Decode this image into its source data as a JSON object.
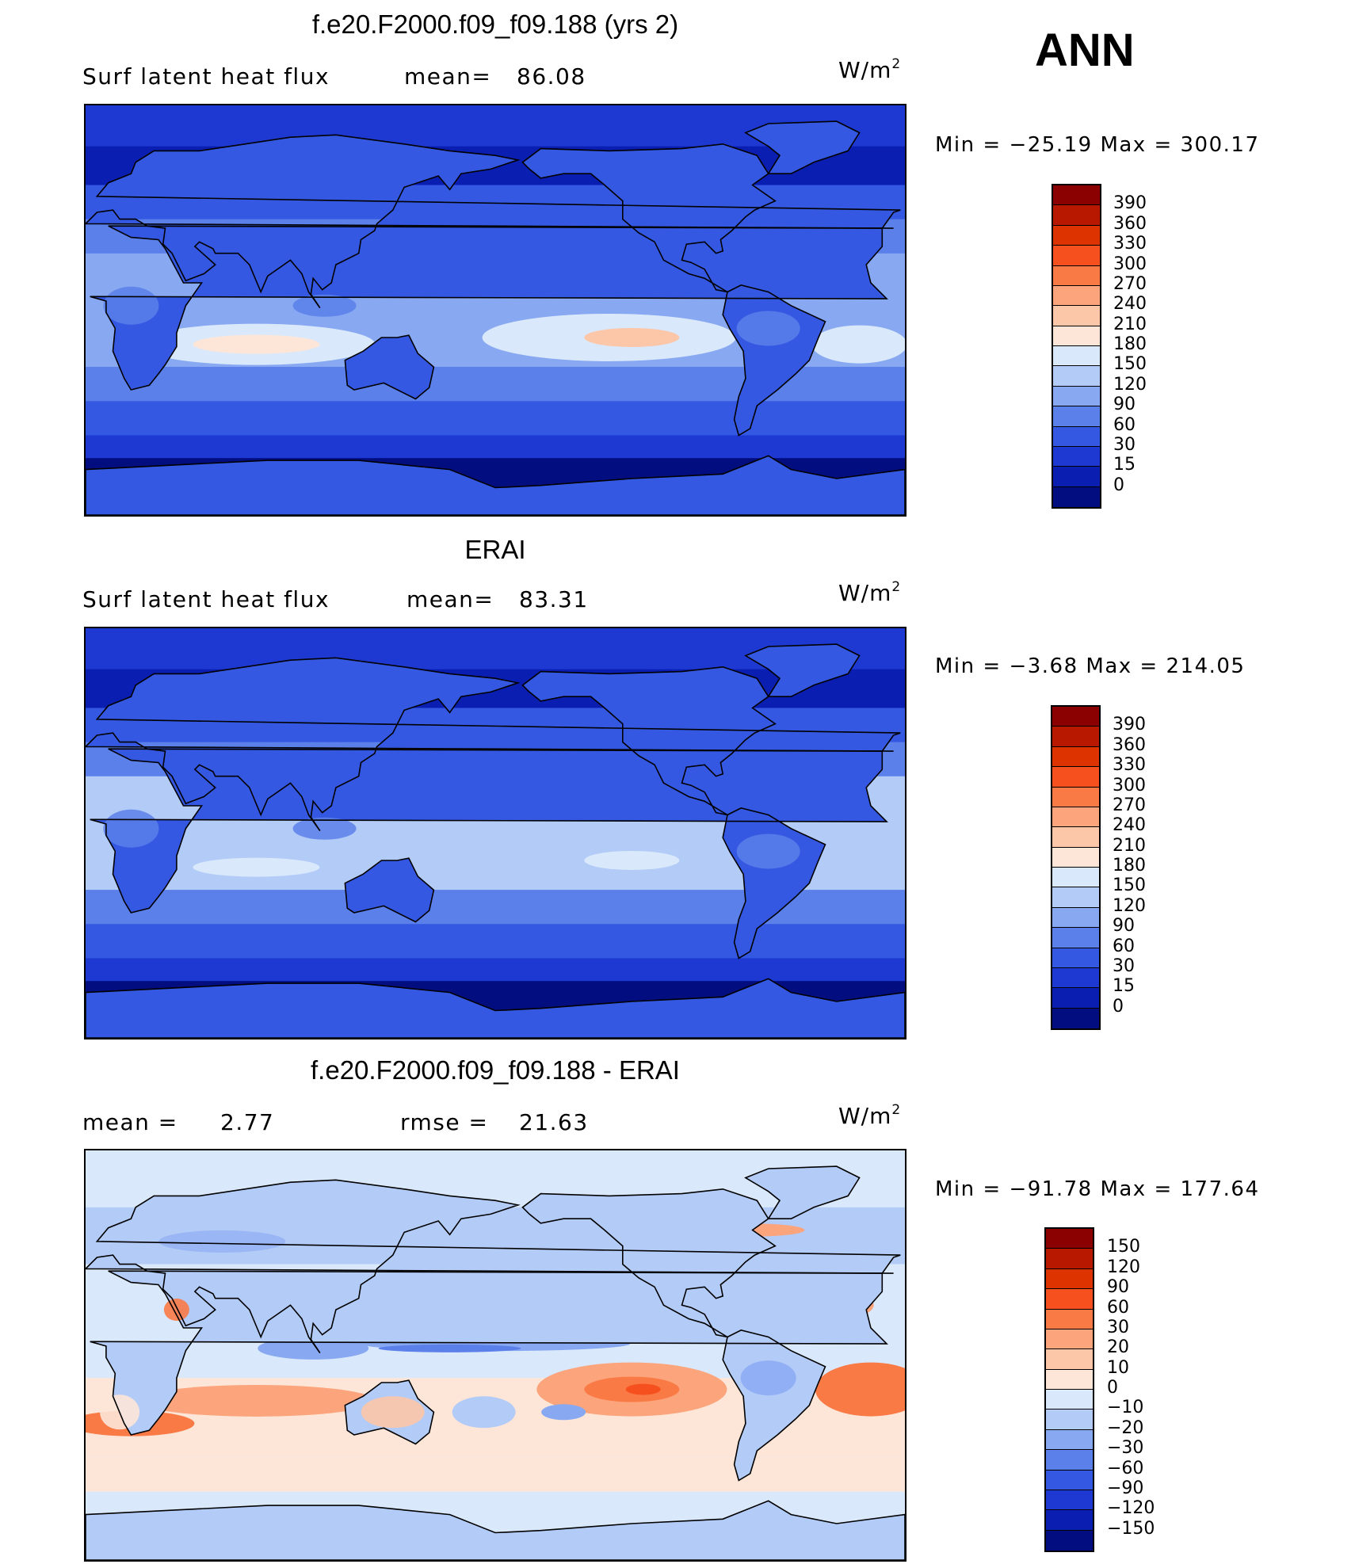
{
  "season": "ANN",
  "chart_data": [
    {
      "type": "heatmap",
      "title": "f.e20.F2000.f09_f09.188 (yrs 2)",
      "left_label": "Surf latent heat flux",
      "mean_label": "mean=",
      "mean_value": "86.08",
      "units": "W/m",
      "units_exp": "2",
      "min_label": "Min =",
      "min_value": "−25.19",
      "max_label": "Max =",
      "max_value": "300.17",
      "colorbar_levels": [
        "390",
        "360",
        "330",
        "300",
        "270",
        "240",
        "210",
        "180",
        "150",
        "120",
        "90",
        "60",
        "30",
        "15",
        "0"
      ],
      "colorbar_colors": [
        "#8b0000",
        "#b81800",
        "#dc3300",
        "#f5501e",
        "#fa7a46",
        "#fca47c",
        "#fcc6a8",
        "#fde6d8",
        "#d9e9fb",
        "#b3cbf7",
        "#88a8f2",
        "#5b80ea",
        "#3458e2",
        "#1d39d2",
        "#0b1eb2",
        "#020e80"
      ],
      "field": "model"
    },
    {
      "type": "heatmap",
      "title": "ERAI",
      "left_label": "Surf latent heat flux",
      "mean_label": "mean=",
      "mean_value": "83.31",
      "units": "W/m",
      "units_exp": "2",
      "min_label": "Min =",
      "min_value": "−3.68",
      "max_label": "Max =",
      "max_value": "214.05",
      "colorbar_levels": [
        "390",
        "360",
        "330",
        "300",
        "270",
        "240",
        "210",
        "180",
        "150",
        "120",
        "90",
        "60",
        "30",
        "15",
        "0"
      ],
      "colorbar_colors": [
        "#8b0000",
        "#b81800",
        "#dc3300",
        "#f5501e",
        "#fa7a46",
        "#fca47c",
        "#fcc6a8",
        "#fde6d8",
        "#d9e9fb",
        "#b3cbf7",
        "#88a8f2",
        "#5b80ea",
        "#3458e2",
        "#1d39d2",
        "#0b1eb2",
        "#020e80"
      ],
      "field": "obs"
    },
    {
      "type": "heatmap",
      "title": "f.e20.F2000.f09_f09.188 - ERAI",
      "left_label": "mean =",
      "mean_label": "",
      "mean_value": "2.77",
      "rmse_label": "rmse =",
      "rmse_value": "21.63",
      "units": "W/m",
      "units_exp": "2",
      "min_label": "Min =",
      "min_value": "−91.78",
      "max_label": "Max =",
      "max_value": "177.64",
      "colorbar_levels": [
        "150",
        "120",
        "90",
        "60",
        "30",
        "20",
        "10",
        "0",
        "−10",
        "−20",
        "−30",
        "−60",
        "−90",
        "−120",
        "−150"
      ],
      "colorbar_colors": [
        "#8b0000",
        "#b81800",
        "#dc3300",
        "#f5501e",
        "#fa7a46",
        "#fca47c",
        "#fcc6a8",
        "#fde6d8",
        "#d9e9fb",
        "#b3cbf7",
        "#88a8f2",
        "#5b80ea",
        "#3458e2",
        "#1d39d2",
        "#0b1eb2",
        "#020e80"
      ],
      "field": "diff"
    }
  ]
}
